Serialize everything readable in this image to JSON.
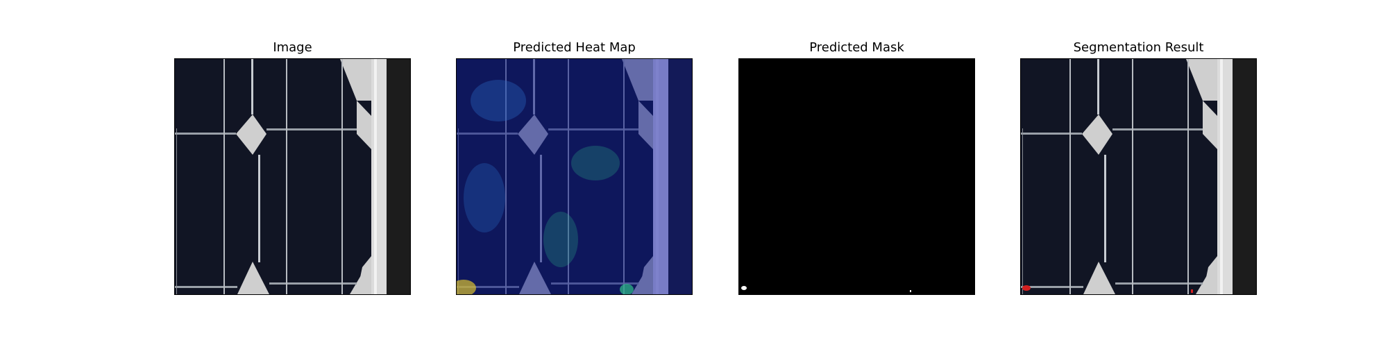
{
  "panels": [
    {
      "id": "image",
      "title": "Image"
    },
    {
      "id": "heatmap",
      "title": "Predicted Heat Map"
    },
    {
      "id": "mask",
      "title": "Predicted Mask"
    },
    {
      "id": "segmentation",
      "title": "Segmentation Result"
    }
  ],
  "colors": {
    "cell": "#121626",
    "cell_edge": "#0b0d18",
    "busbar": "#b8bcc2",
    "gap": "#cfcfcf",
    "frame_metal": "#dcdcdc",
    "dark_edge": "#1c1c1c",
    "heat_base": "#0d1a8a",
    "heat_gap": "#8f8fe8",
    "heat_hot": "#2fbf8a",
    "mask_bg": "#000000",
    "mask_fg": "#ffffff",
    "defect": "#d42020"
  }
}
